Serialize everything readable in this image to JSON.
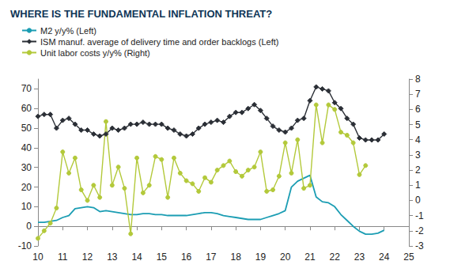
{
  "chart_data": {
    "type": "line",
    "title": "WHERE IS THE FUNDAMENTAL INFLATION THREAT?",
    "x": [
      2010,
      2010.25,
      2010.5,
      2010.75,
      2011,
      2011.25,
      2011.5,
      2011.75,
      2012,
      2012.25,
      2012.5,
      2012.75,
      2013,
      2013.25,
      2013.5,
      2013.75,
      2014,
      2014.25,
      2014.5,
      2014.75,
      2015,
      2015.25,
      2015.5,
      2015.75,
      2016,
      2016.25,
      2016.5,
      2016.75,
      2017,
      2017.25,
      2017.5,
      2017.75,
      2018,
      2018.25,
      2018.5,
      2018.75,
      2019,
      2019.25,
      2019.5,
      2019.75,
      2020,
      2020.25,
      2020.5,
      2020.75,
      2021,
      2021.25,
      2021.5,
      2021.75,
      2022,
      2022.25,
      2022.5,
      2022.75,
      2023,
      2023.25,
      2023.5,
      2023.75,
      2024
    ],
    "series": [
      {
        "name": "M2 y/y% (Left)",
        "color": "#1b9db3",
        "marker": "none",
        "axis": "y",
        "values": [
          2,
          2,
          2.5,
          3,
          4.5,
          5.5,
          9,
          9.5,
          10,
          9.5,
          7.5,
          8,
          7.5,
          7,
          6.5,
          6,
          6,
          6.5,
          6.5,
          6,
          6,
          5.5,
          5.5,
          5.5,
          5.5,
          6,
          6.5,
          7,
          7,
          6.5,
          5.5,
          5,
          4.5,
          4,
          3.5,
          3.5,
          3.5,
          4.5,
          5.5,
          6.5,
          8,
          20,
          23,
          24.5,
          26,
          15,
          12.5,
          12,
          10,
          6,
          3,
          0,
          -2.5,
          -4,
          -4,
          -3.5,
          -2
        ]
      },
      {
        "name": "ISM manuf. average of delivery time and order backlogs (Left)",
        "color": "#2b2f36",
        "marker": "diamond",
        "axis": "y",
        "values": [
          56,
          57,
          57,
          50,
          54,
          55,
          52,
          49,
          49,
          47,
          46,
          47,
          50,
          49,
          50,
          52,
          52,
          53,
          52,
          52,
          52,
          50,
          49,
          47,
          46,
          47,
          50,
          52,
          53,
          54,
          53,
          56,
          58,
          58,
          60,
          62,
          59,
          55,
          51,
          49,
          48,
          50,
          54,
          55,
          64,
          71,
          70,
          69,
          63,
          60,
          55,
          52,
          45,
          44,
          44,
          44,
          47
        ]
      },
      {
        "name": "Unit labor costs y/y% (Right)",
        "color": "#b3c93a",
        "marker": "circle",
        "axis": "y2",
        "values": [
          -2.5,
          -2,
          -1.5,
          -0.5,
          3.2,
          1.8,
          2.8,
          0.7,
          0,
          1,
          0.2,
          5.2,
          1,
          2.2,
          0.8,
          -2.2,
          2.8,
          0.5,
          1,
          2.9,
          2.7,
          0.2,
          2.8,
          1.8,
          1.3,
          1.1,
          0.6,
          1.5,
          1.2,
          2,
          2.3,
          2.6,
          1.9,
          1.6,
          2,
          2.2,
          3.2,
          0.6,
          0.7,
          1.6,
          3.8,
          1.8,
          4,
          0.8,
          1,
          6.3,
          3.8,
          6.3,
          6,
          4.5,
          4.3,
          3.8,
          1.7,
          2.3,
          null,
          null,
          null
        ]
      }
    ],
    "xlim": [
      2010,
      2025
    ],
    "xticks": [
      {
        "value": 2010,
        "label": "10"
      },
      {
        "value": 2011,
        "label": "11"
      },
      {
        "value": 2012,
        "label": "12"
      },
      {
        "value": 2013,
        "label": "13"
      },
      {
        "value": 2014,
        "label": "14"
      },
      {
        "value": 2015,
        "label": "15"
      },
      {
        "value": 2016,
        "label": "16"
      },
      {
        "value": 2017,
        "label": "17"
      },
      {
        "value": 2018,
        "label": "18"
      },
      {
        "value": 2019,
        "label": "19"
      },
      {
        "value": 2020,
        "label": "20"
      },
      {
        "value": 2021,
        "label": "21"
      },
      {
        "value": 2022,
        "label": "22"
      },
      {
        "value": 2023,
        "label": "23"
      },
      {
        "value": 2024,
        "label": "24"
      },
      {
        "value": 2025,
        "label": "25"
      }
    ],
    "ylim": [
      -10,
      75
    ],
    "yticks": [
      -10,
      0,
      10,
      20,
      30,
      40,
      50,
      60,
      70
    ],
    "y2lim": [
      -3,
      8
    ],
    "y2ticks": [
      -3,
      -2,
      -1,
      0,
      1,
      2,
      3,
      4,
      5,
      6,
      7,
      8
    ],
    "legend": "upper left",
    "grid": false
  }
}
